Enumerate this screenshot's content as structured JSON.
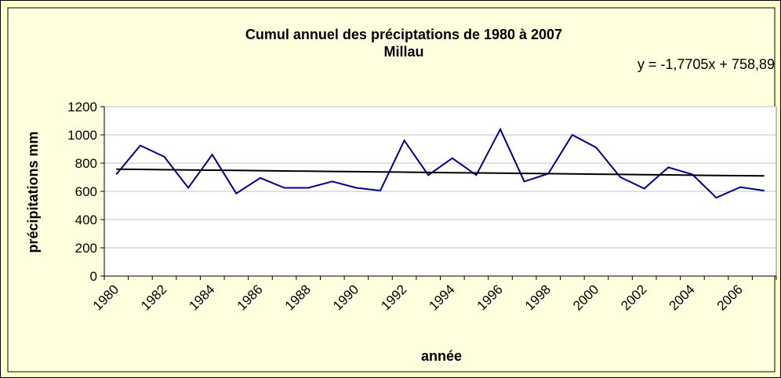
{
  "chart_data": {
    "type": "line",
    "title": "Cumul annuel des préciptations de 1980 à 2007",
    "subtitle": "Millau",
    "annotation": "y = -1,7705x + 758,89",
    "x_label": "année",
    "y_label": "précipitations mm",
    "categories": [
      "1980",
      null,
      "1982",
      null,
      "1984",
      null,
      "1986",
      null,
      "1988",
      null,
      "1990",
      null,
      "1992",
      null,
      "1994",
      null,
      "1996",
      null,
      "1998",
      null,
      "2000",
      null,
      "2002",
      null,
      "2004",
      null,
      "2006",
      null
    ],
    "series": [
      {
        "color": "#000080",
        "values": [
          720,
          925,
          845,
          625,
          860,
          585,
          695,
          625,
          625,
          670,
          625,
          605,
          960,
          715,
          835,
          715,
          1040,
          670,
          725,
          1000,
          910,
          700,
          620,
          770,
          720,
          555,
          630,
          605
        ]
      },
      {
        "color": "#000000",
        "values": [
          757.1,
          755.3,
          753.6,
          751.8,
          750.0,
          748.3,
          746.5,
          744.7,
          743.0,
          741.2,
          739.4,
          737.6,
          735.9,
          734.1,
          732.3,
          730.6,
          728.8,
          727.0,
          725.3,
          723.5,
          721.7,
          719.9,
          718.2,
          716.4,
          714.6,
          712.9,
          711.1,
          709.3
        ]
      }
    ],
    "ylim": [
      0,
      1200
    ],
    "yticks": [
      0,
      200,
      400,
      600,
      800,
      1000,
      1200
    ],
    "grid": true
  }
}
